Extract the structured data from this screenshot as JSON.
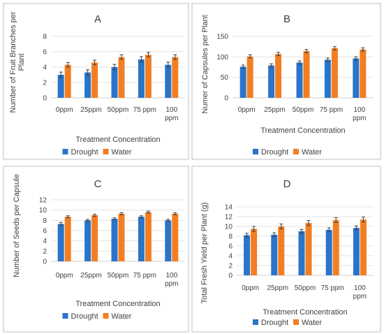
{
  "colors": {
    "drought": "#2a74c9",
    "water": "#f37e22"
  },
  "chart_data": [
    {
      "type": "bar",
      "panel_label": "A",
      "categories": [
        "0ppm",
        "25ppm",
        "50ppm",
        "75 ppm",
        "100 ppm"
      ],
      "xlabel": "Treatment Concentration",
      "ylabel": "Number of Fruit Branches per Plant",
      "ylim": [
        0,
        8
      ],
      "yticks": [
        0,
        2,
        4,
        6,
        8
      ],
      "grid": true,
      "legend": "bottom",
      "series": [
        {
          "name": "Drought",
          "values": [
            3.0,
            3.3,
            4.0,
            5.0,
            4.3
          ],
          "errors": [
            0.35,
            0.35,
            0.35,
            0.35,
            0.35
          ]
        },
        {
          "name": "Water",
          "values": [
            4.3,
            4.6,
            5.3,
            5.6,
            5.3
          ],
          "errors": [
            0.3,
            0.3,
            0.3,
            0.3,
            0.3
          ]
        }
      ]
    },
    {
      "type": "bar",
      "panel_label": "B",
      "categories": [
        "0ppm",
        "25ppm",
        "50ppm",
        "75 ppm",
        "100 ppm"
      ],
      "xlabel": "Treatment Concentration",
      "ylabel": "Numer of Capsules per Plant",
      "ylim": [
        0,
        150
      ],
      "yticks": [
        0,
        50,
        100,
        150
      ],
      "grid": true,
      "legend": "bottom",
      "series": [
        {
          "name": "Drought",
          "values": [
            76,
            79,
            86,
            93,
            96
          ],
          "errors": [
            4,
            4,
            4,
            4,
            4
          ]
        },
        {
          "name": "Water",
          "values": [
            101,
            107,
            114,
            121,
            118
          ],
          "errors": [
            4,
            4,
            4,
            4,
            4
          ]
        }
      ]
    },
    {
      "type": "bar",
      "panel_label": "C",
      "categories": [
        "0ppm",
        "25ppm",
        "50ppm",
        "75 ppm",
        "100 ppm"
      ],
      "xlabel": "Treatment Concentration",
      "ylabel": "Number of Seeds per Capsule",
      "ylim": [
        0,
        12
      ],
      "yticks": [
        0,
        2,
        4,
        6,
        8,
        10,
        12
      ],
      "grid": true,
      "legend": "bottom",
      "series": [
        {
          "name": "Drought",
          "values": [
            7.3,
            8.0,
            8.3,
            8.7,
            8.0
          ],
          "errors": [
            0.3,
            0.2,
            0.2,
            0.2,
            0.2
          ]
        },
        {
          "name": "Water",
          "values": [
            8.7,
            9.0,
            9.3,
            9.6,
            9.3
          ],
          "errors": [
            0.2,
            0.2,
            0.2,
            0.2,
            0.2
          ]
        }
      ]
    },
    {
      "type": "bar",
      "panel_label": "D",
      "categories": [
        "0ppm",
        "25ppm",
        "50ppm",
        "75 ppm",
        "100 ppm"
      ],
      "xlabel": "Treatment Concentration",
      "ylabel": "Total Fresh Yield per Plant (g)",
      "ylim": [
        0,
        14
      ],
      "yticks": [
        0,
        2,
        4,
        6,
        8,
        10,
        12,
        14
      ],
      "grid": true,
      "legend": "bottom",
      "series": [
        {
          "name": "Drought",
          "values": [
            8.2,
            8.3,
            9.0,
            9.3,
            9.7
          ],
          "errors": [
            0.4,
            0.4,
            0.4,
            0.4,
            0.4
          ]
        },
        {
          "name": "Water",
          "values": [
            9.5,
            10.0,
            10.7,
            11.3,
            11.4
          ],
          "errors": [
            0.5,
            0.5,
            0.5,
            0.5,
            0.5
          ]
        }
      ]
    }
  ]
}
